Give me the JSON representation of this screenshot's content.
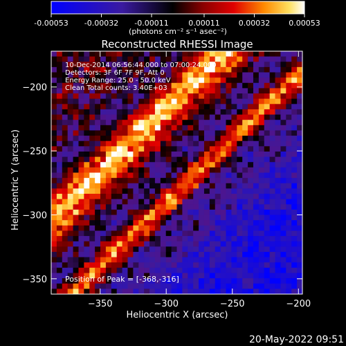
{
  "footer": {
    "timestamp": "20-May-2022 09:51"
  },
  "colorbar": {
    "tick_labels": [
      "-0.00053",
      "-0.00032",
      "-0.00011",
      "0.00011",
      "0.00032",
      "0.00053"
    ],
    "tick_values": [
      -0.00053,
      -0.00032,
      -0.00011,
      0.00011,
      0.00032,
      0.00053
    ],
    "range": [
      -0.00053,
      0.00053
    ],
    "unit_label": "(photons cm⁻² s⁻¹ asec⁻²)",
    "colors": [
      "#0000ff",
      "#3a1aa0",
      "#000000",
      "#8a0000",
      "#e00000",
      "#ff8a00",
      "#ffe060",
      "#ffffff"
    ]
  },
  "chart_data": {
    "type": "heatmap",
    "title": "Reconstructed RHESSI Image",
    "xlabel": "Heliocentric X (arcsec)",
    "ylabel": "Heliocentric Y (arcsec)",
    "xlim": [
      -387,
      -197
    ],
    "ylim": [
      -362,
      -172
    ],
    "x_ticks": [
      -350,
      -300,
      -250,
      -200
    ],
    "x_tick_labels": [
      "−350",
      "−300",
      "−250",
      "−200"
    ],
    "y_ticks": [
      -350,
      -300,
      -250,
      -200
    ],
    "y_tick_labels": [
      "−350",
      "−300",
      "−250",
      "−200"
    ],
    "annotations": [
      "10-Dec-2014 06:56:44.000 to 07:00:24.000",
      "Detectors: 3F 6F 7F 9F, Att 0",
      "Energy Range: 25.0 - 50.0 keV",
      "Clean    Total counts: 3.40E+03"
    ],
    "peak_label": "Position of Peak = [-368,-316]",
    "peak": [
      -368,
      -316
    ]
  }
}
